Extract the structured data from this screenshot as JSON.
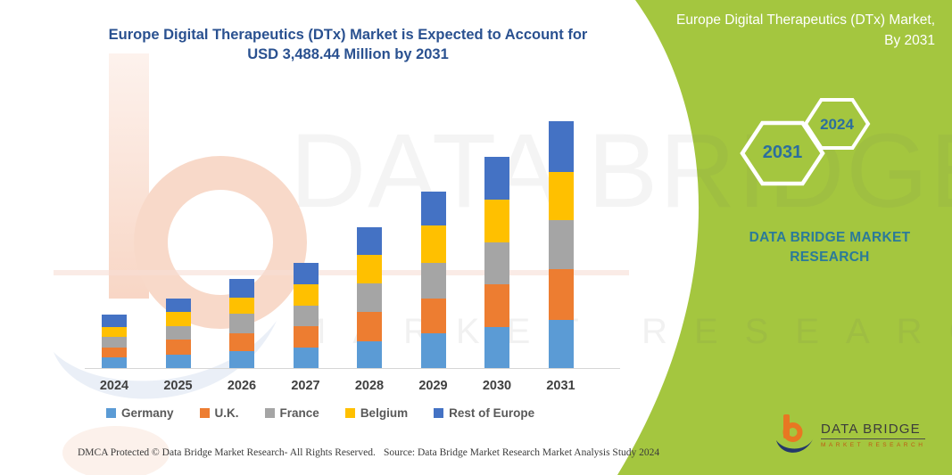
{
  "header": {
    "title": "Europe Digital Therapeutics (DTx) Market is Expected to Account for USD 3,488.44 Million by 2031",
    "title_color": "#2A5190"
  },
  "chart_data": {
    "type": "bar",
    "stacked": true,
    "title": "Europe Digital Therapeutics (DTx) Market is Expected to Account for USD 3,488.44 Million by 2031",
    "categories": [
      "2024",
      "2025",
      "2026",
      "2027",
      "2028",
      "2029",
      "2030",
      "2031"
    ],
    "series": [
      {
        "name": "Germany",
        "color": "#5B9BD5",
        "values": [
          146,
          189,
          239,
          294,
          378,
          496,
          579,
          685
        ]
      },
      {
        "name": "U.K.",
        "color": "#ED7D31",
        "values": [
          147,
          209,
          252,
          302,
          412,
          482,
          610,
          713
        ]
      },
      {
        "name": "France",
        "color": "#A5A5A5",
        "values": [
          147,
          189,
          273,
          286,
          407,
          504,
          587,
          693
        ]
      },
      {
        "name": "Belgium",
        "color": "#FFC000",
        "values": [
          146,
          210,
          231,
          302,
          399,
          533,
          610,
          685
        ]
      },
      {
        "name": "Rest of Europe",
        "color": "#4472C4",
        "values": [
          169,
          189,
          265,
          306,
          390,
          475,
          596,
          712.44
        ]
      }
    ],
    "total_2031": 3488.44,
    "unit": "USD Million",
    "xlabel": "",
    "ylabel": "",
    "ylim": [
      0,
      3600
    ],
    "grid": false,
    "y_axis_visible": false,
    "legend_position": "bottom"
  },
  "side_panel": {
    "bg_color": "#A4C63F",
    "title": "Europe Digital Therapeutics (DTx) Market, By 2031",
    "hexagons": [
      {
        "label": "2031"
      },
      {
        "label": "2024"
      }
    ],
    "brand": "DATA BRIDGE MARKET RESEARCH"
  },
  "watermark": {
    "title": "DATA BRIDGE",
    "subtitle": "MARKET RESEARCH"
  },
  "logo": {
    "name": "DATA BRIDGE",
    "tagline": "MARKET RESEARCH"
  },
  "footer": {
    "left": "DMCA Protected © Data Bridge Market Research-  All Rights Reserved.",
    "source": "Source: Data Bridge Market Research  Market Analysis Study 2024"
  }
}
